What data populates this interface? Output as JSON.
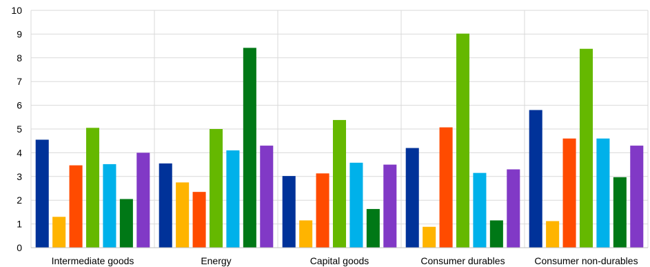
{
  "chart_data": {
    "type": "bar",
    "categories": [
      "Intermediate goods",
      "Energy",
      "Capital goods",
      "Consumer durables",
      "Consumer non-durables"
    ],
    "series": [
      {
        "color": "#003299",
        "values": [
          4.55,
          3.55,
          3.02,
          4.2,
          5.8
        ]
      },
      {
        "color": "#FFB400",
        "values": [
          1.3,
          2.75,
          1.15,
          0.88,
          1.12
        ]
      },
      {
        "color": "#FF4B00",
        "values": [
          3.47,
          2.35,
          3.13,
          5.07,
          4.6
        ]
      },
      {
        "color": "#65B800",
        "values": [
          5.05,
          5.0,
          5.38,
          9.02,
          8.38
        ]
      },
      {
        "color": "#00B1EA",
        "values": [
          3.52,
          4.1,
          3.58,
          3.15,
          4.6
        ]
      },
      {
        "color": "#007816",
        "values": [
          2.05,
          8.42,
          1.63,
          1.15,
          2.97
        ]
      },
      {
        "color": "#8139C6",
        "values": [
          4.0,
          4.3,
          3.5,
          3.3,
          4.3
        ]
      }
    ],
    "ylim": [
      0,
      10
    ],
    "yticks": [
      "0",
      "1",
      "2",
      "3",
      "4",
      "5",
      "6",
      "7",
      "8",
      "9",
      "10"
    ],
    "grid": true,
    "legend": "none",
    "title": "",
    "xlabel": "",
    "ylabel": ""
  }
}
